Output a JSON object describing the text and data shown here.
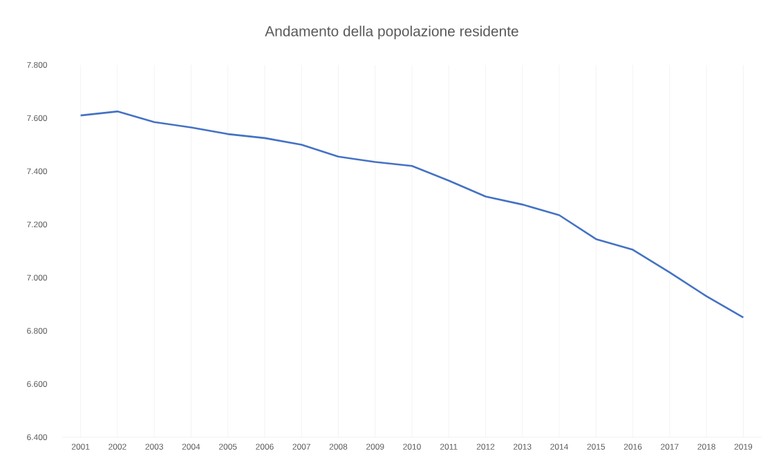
{
  "chart_data": {
    "type": "line",
    "title": "Andamento della popolazione residente",
    "categories": [
      "2001",
      "2002",
      "2003",
      "2004",
      "2005",
      "2006",
      "2007",
      "2008",
      "2009",
      "2010",
      "2011",
      "2012",
      "2013",
      "2014",
      "2015",
      "2016",
      "2017",
      "2018",
      "2019"
    ],
    "series": [
      {
        "color": "#4472c4",
        "values": [
          7610,
          7625,
          7585,
          7565,
          7540,
          7525,
          7500,
          7455,
          7435,
          7420,
          7365,
          7305,
          7275,
          7235,
          7145,
          7105,
          7020,
          6930,
          6850
        ]
      }
    ],
    "ylim": [
      6400,
      7800
    ],
    "yticks": [
      {
        "value": 6400,
        "label": "6.400"
      },
      {
        "value": 6600,
        "label": "6.600"
      },
      {
        "value": 6800,
        "label": "6.800"
      },
      {
        "value": 7000,
        "label": "7.000"
      },
      {
        "value": 7200,
        "label": "7.200"
      },
      {
        "value": 7400,
        "label": "7.400"
      },
      {
        "value": 7600,
        "label": "7.600"
      },
      {
        "value": 7800,
        "label": "7.800"
      }
    ],
    "grid": "x",
    "legend": false,
    "marker": "none",
    "line_style": "solid"
  }
}
